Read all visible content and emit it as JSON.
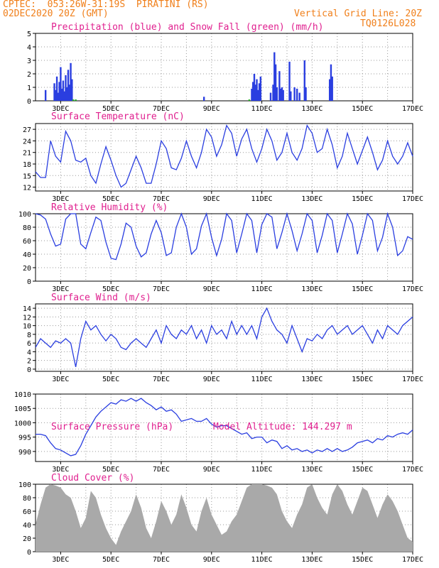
{
  "header": {
    "line1_left": "CPTEC:  053:26W-31:19S  PIRATINI (RS)",
    "line2_left": "02DEC2020 20Z (GMT)",
    "line1_right": "Vertical Grid Line: 20Z",
    "line2_right": "TQ0126L028"
  },
  "colors": {
    "header": "#f07f1a",
    "title": "#e0208f",
    "line": "#2a3ee0",
    "snow": "#20b020",
    "cloud": "#a9a9a9"
  },
  "x_axis": {
    "start_day": 2.0,
    "end_day": 17.0,
    "ticks": [
      {
        "day": 3,
        "label": "3DEC"
      },
      {
        "day": 5,
        "label": "5DEC"
      },
      {
        "day": 7,
        "label": "7DEC"
      },
      {
        "day": 9,
        "label": "9DEC"
      },
      {
        "day": 11,
        "label": "11DEC"
      },
      {
        "day": 13,
        "label": "13DEC"
      },
      {
        "day": 15,
        "label": "15DEC"
      },
      {
        "day": 17,
        "label": "17DEC"
      }
    ]
  },
  "chart_data": [
    {
      "type": "bar",
      "title": "Precipitation (blue) and Snow Fall (green) (mm/h)",
      "ylim": [
        0,
        5
      ],
      "yticks": [
        0,
        1,
        2,
        3,
        4,
        5
      ],
      "series": [
        {
          "name": "Precipitation",
          "points": [
            [
              2.4,
              0.8
            ],
            [
              2.75,
              1.3
            ],
            [
              2.8,
              0.8
            ],
            [
              2.85,
              1.8
            ],
            [
              2.9,
              0.6
            ],
            [
              2.95,
              1.4
            ],
            [
              3.0,
              2.5
            ],
            [
              3.05,
              0.9
            ],
            [
              3.1,
              1.5
            ],
            [
              3.15,
              0.7
            ],
            [
              3.2,
              1.9
            ],
            [
              3.25,
              1.0
            ],
            [
              3.3,
              2.3
            ],
            [
              3.35,
              1.2
            ],
            [
              3.4,
              2.8
            ],
            [
              3.45,
              1.6
            ],
            [
              8.7,
              0.3
            ],
            [
              10.6,
              0.9
            ],
            [
              10.65,
              1.4
            ],
            [
              10.7,
              2.0
            ],
            [
              10.75,
              1.2
            ],
            [
              10.8,
              1.6
            ],
            [
              10.85,
              0.8
            ],
            [
              10.9,
              1.3
            ],
            [
              10.95,
              1.8
            ],
            [
              11.35,
              0.6
            ],
            [
              11.45,
              1.2
            ],
            [
              11.5,
              3.6
            ],
            [
              11.55,
              2.7
            ],
            [
              11.6,
              1.0
            ],
            [
              11.7,
              2.2
            ],
            [
              11.75,
              0.9
            ],
            [
              11.8,
              1.0
            ],
            [
              11.85,
              0.8
            ],
            [
              12.1,
              2.9
            ],
            [
              12.15,
              0.7
            ],
            [
              12.3,
              1.0
            ],
            [
              12.4,
              0.9
            ],
            [
              12.5,
              0.6
            ],
            [
              12.7,
              3.0
            ],
            [
              12.75,
              1.0
            ],
            [
              13.7,
              1.6
            ],
            [
              13.75,
              2.7
            ],
            [
              13.8,
              1.8
            ]
          ]
        },
        {
          "name": "Snow Fall",
          "points": [
            [
              3.5,
              0.1
            ],
            [
              3.6,
              0.1
            ],
            [
              10.5,
              0.1
            ]
          ]
        }
      ]
    },
    {
      "type": "line",
      "title": "Surface Temperature (nC)",
      "ylim": [
        11,
        28.5
      ],
      "yticks": [
        12,
        15,
        18,
        21,
        24,
        27
      ],
      "x": [
        2.0,
        2.2,
        2.4,
        2.6,
        2.8,
        3.0,
        3.2,
        3.4,
        3.6,
        3.8,
        4.0,
        4.2,
        4.4,
        4.6,
        4.8,
        5.0,
        5.2,
        5.4,
        5.6,
        5.8,
        6.0,
        6.2,
        6.4,
        6.6,
        6.8,
        7.0,
        7.2,
        7.4,
        7.6,
        7.8,
        8.0,
        8.2,
        8.4,
        8.6,
        8.8,
        9.0,
        9.2,
        9.4,
        9.6,
        9.8,
        10.0,
        10.2,
        10.4,
        10.6,
        10.8,
        11.0,
        11.2,
        11.4,
        11.6,
        11.8,
        12.0,
        12.2,
        12.4,
        12.6,
        12.8,
        13.0,
        13.2,
        13.4,
        13.6,
        13.8,
        14.0,
        14.2,
        14.4,
        14.6,
        14.8,
        15.0,
        15.2,
        15.4,
        15.6,
        15.8,
        16.0,
        16.2,
        16.4,
        16.6,
        16.8,
        17.0
      ],
      "values": [
        16,
        14.5,
        14.5,
        24,
        20,
        18.5,
        26.5,
        24,
        19,
        18.5,
        19.5,
        15,
        13,
        18,
        22.5,
        19,
        15,
        12,
        13,
        16.5,
        20,
        17,
        13,
        13,
        18,
        24,
        22,
        17,
        16.5,
        19.5,
        24,
        20,
        17,
        21,
        27,
        25,
        20,
        23,
        28,
        26,
        20,
        24.5,
        27,
        22,
        18.5,
        22,
        27,
        24,
        19,
        21,
        26,
        21,
        19,
        22,
        28,
        26,
        21,
        22,
        27,
        23,
        17,
        20,
        26,
        22,
        18,
        21.5,
        25,
        21,
        16.5,
        19,
        24,
        20,
        18,
        20,
        23.5,
        20
      ]
    },
    {
      "type": "line",
      "title": "Relative Humidity (%)",
      "ylim": [
        0,
        100
      ],
      "yticks": [
        0,
        20,
        40,
        60,
        80,
        100
      ],
      "x": [
        2.0,
        2.2,
        2.4,
        2.6,
        2.8,
        3.0,
        3.2,
        3.4,
        3.6,
        3.8,
        4.0,
        4.2,
        4.4,
        4.6,
        4.8,
        5.0,
        5.2,
        5.4,
        5.6,
        5.8,
        6.0,
        6.2,
        6.4,
        6.6,
        6.8,
        7.0,
        7.2,
        7.4,
        7.6,
        7.8,
        8.0,
        8.2,
        8.4,
        8.6,
        8.8,
        9.0,
        9.2,
        9.4,
        9.6,
        9.8,
        10.0,
        10.2,
        10.4,
        10.6,
        10.8,
        11.0,
        11.2,
        11.4,
        11.6,
        11.8,
        12.0,
        12.2,
        12.4,
        12.6,
        12.8,
        13.0,
        13.2,
        13.4,
        13.6,
        13.8,
        14.0,
        14.2,
        14.4,
        14.6,
        14.8,
        15.0,
        15.2,
        15.4,
        15.6,
        15.8,
        16.0,
        16.2,
        16.4,
        16.6,
        16.8,
        17.0
      ],
      "values": [
        100,
        98,
        92,
        70,
        52,
        55,
        92,
        100,
        100,
        55,
        48,
        72,
        95,
        90,
        58,
        34,
        32,
        55,
        86,
        80,
        52,
        36,
        42,
        70,
        90,
        72,
        38,
        42,
        80,
        100,
        80,
        40,
        48,
        82,
        100,
        65,
        38,
        62,
        100,
        90,
        42,
        70,
        100,
        90,
        42,
        84,
        100,
        95,
        48,
        72,
        100,
        75,
        45,
        70,
        100,
        90,
        42,
        68,
        100,
        90,
        42,
        70,
        100,
        85,
        40,
        68,
        100,
        90,
        45,
        65,
        100,
        80,
        38,
        45,
        66,
        62
      ]
    },
    {
      "type": "line",
      "title": "Surface Wind (m/s)",
      "ylim": [
        -0.5,
        15
      ],
      "yticks": [
        0,
        2,
        4,
        6,
        8,
        10,
        12,
        14
      ],
      "x": [
        2.0,
        2.2,
        2.4,
        2.6,
        2.8,
        3.0,
        3.2,
        3.4,
        3.6,
        3.8,
        4.0,
        4.2,
        4.4,
        4.6,
        4.8,
        5.0,
        5.2,
        5.4,
        5.6,
        5.8,
        6.0,
        6.2,
        6.4,
        6.6,
        6.8,
        7.0,
        7.2,
        7.4,
        7.6,
        7.8,
        8.0,
        8.2,
        8.4,
        8.6,
        8.8,
        9.0,
        9.2,
        9.4,
        9.6,
        9.8,
        10.0,
        10.2,
        10.4,
        10.6,
        10.8,
        11.0,
        11.2,
        11.4,
        11.6,
        11.8,
        12.0,
        12.2,
        12.4,
        12.6,
        12.8,
        13.0,
        13.2,
        13.4,
        13.6,
        13.8,
        14.0,
        14.2,
        14.4,
        14.6,
        14.8,
        15.0,
        15.2,
        15.4,
        15.6,
        15.8,
        16.0,
        16.2,
        16.4,
        16.6,
        16.8,
        17.0
      ],
      "values": [
        5,
        7,
        6,
        5,
        6.5,
        6,
        7,
        6,
        0.5,
        7,
        11,
        9,
        10,
        8,
        6.5,
        8,
        7,
        5,
        4.5,
        6,
        7,
        6,
        5,
        7,
        9,
        6,
        10,
        8,
        7,
        9,
        8,
        10,
        7,
        9,
        6,
        10,
        8,
        9,
        7,
        11,
        8,
        10,
        8,
        10,
        7,
        12,
        14,
        11,
        9,
        8,
        6,
        10,
        7,
        4,
        7,
        6.5,
        8,
        7,
        9,
        10,
        8,
        9,
        10,
        8,
        9,
        10,
        8,
        6,
        9,
        7,
        10,
        9,
        8,
        10,
        11,
        12
      ]
    },
    {
      "type": "line",
      "title": "Surface Pressure (hPa)",
      "subtitle": "Model Altitude: 144.297 m",
      "ylim": [
        986.5,
        1010
      ],
      "yticks": [
        990,
        995,
        1000,
        1005,
        1010
      ],
      "x": [
        2.0,
        2.2,
        2.4,
        2.6,
        2.8,
        3.0,
        3.2,
        3.4,
        3.6,
        3.8,
        4.0,
        4.2,
        4.4,
        4.6,
        4.8,
        5.0,
        5.2,
        5.4,
        5.6,
        5.8,
        6.0,
        6.2,
        6.4,
        6.6,
        6.8,
        7.0,
        7.2,
        7.4,
        7.6,
        7.8,
        8.0,
        8.2,
        8.4,
        8.6,
        8.8,
        9.0,
        9.2,
        9.4,
        9.6,
        9.8,
        10.0,
        10.2,
        10.4,
        10.6,
        10.8,
        11.0,
        11.2,
        11.4,
        11.6,
        11.8,
        12.0,
        12.2,
        12.4,
        12.6,
        12.8,
        13.0,
        13.2,
        13.4,
        13.6,
        13.8,
        14.0,
        14.2,
        14.4,
        14.6,
        14.8,
        15.0,
        15.2,
        15.4,
        15.6,
        15.8,
        16.0,
        16.2,
        16.4,
        16.6,
        16.8,
        17.0
      ],
      "values": [
        996,
        996,
        995.5,
        993,
        991,
        990.5,
        989.5,
        988.5,
        989,
        992,
        996,
        999,
        1002,
        1004,
        1005.5,
        1007,
        1006.5,
        1008,
        1007.5,
        1008.5,
        1007.5,
        1008.5,
        1007,
        1006,
        1004.5,
        1005.5,
        1004,
        1004.5,
        1003,
        1000.5,
        1001,
        1001.5,
        1000.5,
        1000.5,
        1001.5,
        999.5,
        998.5,
        999,
        999,
        998,
        997,
        996,
        996.5,
        994.5,
        995,
        995,
        993,
        994,
        993.5,
        991,
        992,
        990.5,
        991,
        990,
        990.5,
        989.5,
        990.5,
        990,
        991,
        990,
        991,
        990,
        990.5,
        991.5,
        993,
        993.5,
        994,
        993,
        994.5,
        994,
        995.5,
        995,
        996,
        996.5,
        996,
        997.5
      ]
    },
    {
      "type": "area",
      "title": "Cloud Cover (%)",
      "ylim": [
        0,
        100
      ],
      "yticks": [
        0,
        20,
        40,
        60,
        80,
        100
      ],
      "x": [
        2.0,
        2.2,
        2.4,
        2.6,
        2.8,
        3.0,
        3.2,
        3.4,
        3.6,
        3.8,
        4.0,
        4.2,
        4.4,
        4.6,
        4.8,
        5.0,
        5.2,
        5.4,
        5.6,
        5.8,
        6.0,
        6.2,
        6.4,
        6.6,
        6.8,
        7.0,
        7.2,
        7.4,
        7.6,
        7.8,
        8.0,
        8.2,
        8.4,
        8.6,
        8.8,
        9.0,
        9.2,
        9.4,
        9.6,
        9.8,
        10.0,
        10.2,
        10.4,
        10.6,
        10.8,
        11.0,
        11.2,
        11.4,
        11.6,
        11.8,
        12.0,
        12.2,
        12.4,
        12.6,
        12.8,
        13.0,
        13.2,
        13.4,
        13.6,
        13.8,
        14.0,
        14.2,
        14.4,
        14.6,
        14.8,
        15.0,
        15.2,
        15.4,
        15.6,
        15.8,
        16.0,
        16.2,
        16.4,
        16.6,
        16.8,
        17.0
      ],
      "values": [
        40,
        70,
        95,
        100,
        98,
        95,
        85,
        80,
        60,
        35,
        50,
        90,
        80,
        55,
        35,
        20,
        10,
        30,
        45,
        60,
        85,
        65,
        35,
        20,
        45,
        75,
        60,
        40,
        55,
        85,
        65,
        40,
        30,
        60,
        80,
        55,
        40,
        25,
        30,
        45,
        55,
        75,
        95,
        100,
        100,
        100,
        98,
        95,
        85,
        60,
        45,
        35,
        55,
        70,
        95,
        100,
        80,
        65,
        55,
        85,
        100,
        90,
        70,
        55,
        75,
        95,
        90,
        70,
        50,
        70,
        85,
        75,
        60,
        40,
        20,
        15
      ]
    }
  ]
}
